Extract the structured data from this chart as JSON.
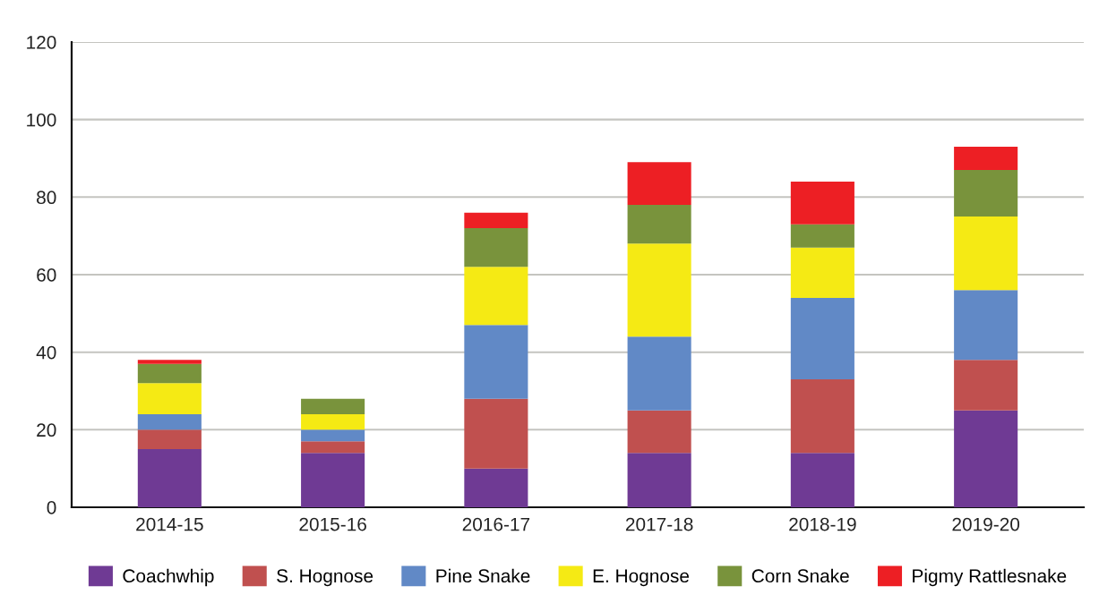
{
  "chart_data": {
    "type": "bar",
    "stacked": true,
    "categories": [
      "2014-15",
      "2015-16",
      "2016-17",
      "2017-18",
      "2018-19",
      "2019-20"
    ],
    "series": [
      {
        "name": "Coachwhip",
        "color": "#6f3a94",
        "values": [
          15,
          14,
          10,
          14,
          14,
          25
        ]
      },
      {
        "name": "S. Hognose",
        "color": "#c0504f",
        "values": [
          5,
          3,
          18,
          11,
          19,
          13
        ]
      },
      {
        "name": "Pine Snake",
        "color": "#6189c6",
        "values": [
          4,
          3,
          19,
          19,
          21,
          18
        ]
      },
      {
        "name": "E. Hognose",
        "color": "#f5ea14",
        "values": [
          8,
          4,
          15,
          24,
          13,
          19
        ]
      },
      {
        "name": "Corn Snake",
        "color": "#79933c",
        "values": [
          5,
          4,
          10,
          10,
          6,
          12
        ]
      },
      {
        "name": "Pigmy Rattlesnake",
        "color": "#ed1f24",
        "values": [
          1,
          0,
          4,
          11,
          11,
          6
        ]
      }
    ],
    "ylim": [
      0,
      120
    ],
    "yticks": [
      0,
      20,
      40,
      60,
      80,
      100,
      120
    ],
    "grid": "y",
    "legend": "bottom"
  }
}
